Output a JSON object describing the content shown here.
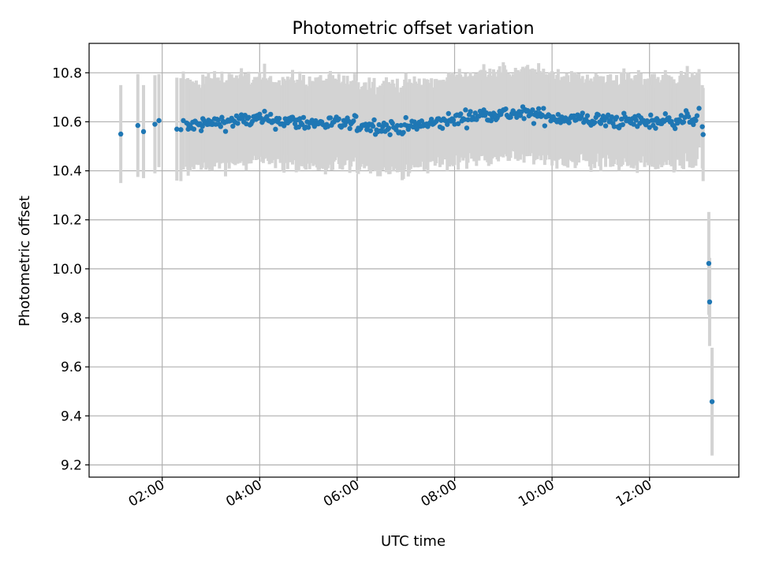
{
  "chart_data": {
    "type": "scatter",
    "title": "Photometric offset variation",
    "xlabel": "UTC time",
    "ylabel": "Photometric offset",
    "x_axis": "time (hours UTC)",
    "xlim": [
      "00:30",
      "13:50"
    ],
    "ylim": [
      9.15,
      10.92
    ],
    "x_ticks": [
      "02:00",
      "04:00",
      "06:00",
      "08:00",
      "10:00",
      "12:00"
    ],
    "y_ticks": [
      9.2,
      9.4,
      9.6,
      9.8,
      10.0,
      10.2,
      10.4,
      10.6,
      10.8
    ],
    "grid": true,
    "point_color": "#1f77b4",
    "errorbar_color": "#d3d3d3",
    "series": [
      {
        "trend": [
          {
            "x": "02:30",
            "y": 10.58
          },
          {
            "x": "03:15",
            "y": 10.6
          },
          {
            "x": "04:00",
            "y": 10.61
          },
          {
            "x": "05:00",
            "y": 10.595
          },
          {
            "x": "06:00",
            "y": 10.59
          },
          {
            "x": "06:45",
            "y": 10.575
          },
          {
            "x": "07:30",
            "y": 10.59
          },
          {
            "x": "08:00",
            "y": 10.61
          },
          {
            "x": "08:45",
            "y": 10.635
          },
          {
            "x": "09:30",
            "y": 10.63
          },
          {
            "x": "10:15",
            "y": 10.615
          },
          {
            "x": "11:00",
            "y": 10.605
          },
          {
            "x": "12:00",
            "y": 10.6
          },
          {
            "x": "12:45",
            "y": 10.61
          },
          {
            "x": "13:00",
            "y": 10.62
          }
        ],
        "trend_spacing_minutes": 1.5,
        "trend_scatter": 0.015,
        "trend_error": 0.17,
        "points": [
          {
            "x": "01:09",
            "y": 10.55,
            "err": 0.2
          },
          {
            "x": "01:30",
            "y": 10.585,
            "err": 0.21
          },
          {
            "x": "01:37",
            "y": 10.56,
            "err": 0.19
          },
          {
            "x": "01:51",
            "y": 10.59,
            "err": 0.2
          },
          {
            "x": "01:56",
            "y": 10.605,
            "err": 0.19
          },
          {
            "x": "02:18",
            "y": 10.57,
            "err": 0.21
          },
          {
            "x": "02:23",
            "y": 10.568,
            "err": 0.21
          },
          {
            "x": "02:26",
            "y": 10.605,
            "err": 0.2
          },
          {
            "x": "02:32",
            "y": 10.57,
            "err": 0.19
          },
          {
            "x": "02:50",
            "y": 10.613,
            "err": 0.18
          },
          {
            "x": "13:01",
            "y": 10.655,
            "err": 0.16
          },
          {
            "x": "13:05",
            "y": 10.58,
            "err": 0.17
          },
          {
            "x": "13:06",
            "y": 10.548,
            "err": 0.19
          },
          {
            "x": "13:13",
            "y": 10.022,
            "err": 0.21
          },
          {
            "x": "13:14",
            "y": 9.865,
            "err": 0.18
          },
          {
            "x": "13:17",
            "y": 9.458,
            "err": 0.22
          }
        ]
      }
    ]
  }
}
